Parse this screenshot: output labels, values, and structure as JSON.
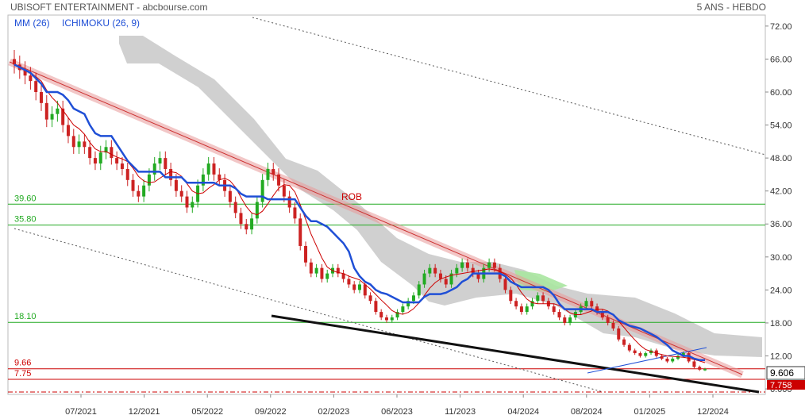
{
  "header": {
    "title": "UBISOFT ENTERTAINMENT - abcbourse.com",
    "period": "5 ANS - HEBDO"
  },
  "legend": {
    "ma_label": "MM (26)",
    "ichimoku_label": "ICHIMOKU (26, 9)"
  },
  "colors": {
    "ma": "#cc0000",
    "ichimoku": "#1f4fd6",
    "cloud": "#c8c8c8",
    "cloud_bull": "#a9e6a0",
    "candle_up": "#22aa22",
    "candle_down": "#cc2222",
    "support": "#22aa22",
    "resistance": "#cc0000",
    "channel": "#e89a9a"
  },
  "chart_data": {
    "type": "candlestick",
    "x_ticks": [
      "07/2021",
      "12/2021",
      "05/2022",
      "09/2022",
      "02/2023",
      "06/2023",
      "11/2023",
      "04/2024",
      "08/2024",
      "01/2025",
      "12/2024"
    ],
    "y_ticks": [
      "72.00",
      "66.00",
      "60.00",
      "54.00",
      "48.00",
      "42.00",
      "36.00",
      "30.00",
      "24.00",
      "18.00",
      "12.00",
      "6.000"
    ],
    "ylim": [
      5,
      74
    ],
    "levels": [
      {
        "label": "39.60",
        "value": 39.6,
        "color": "#22aa22"
      },
      {
        "label": "35.80",
        "value": 35.8,
        "color": "#22aa22"
      },
      {
        "label": "18.10",
        "value": 18.1,
        "color": "#22aa22"
      },
      {
        "label": "9.66",
        "value": 9.66,
        "color": "#cc0000"
      },
      {
        "label": "7.75",
        "value": 7.75,
        "color": "#cc0000"
      }
    ],
    "annotation": "ROB",
    "last_price": "9.606",
    "last_ma": "7.758",
    "close_series": [
      65,
      64,
      63,
      62,
      60,
      58,
      55,
      56,
      57,
      54,
      52,
      50,
      51,
      50,
      48,
      47,
      49,
      50,
      48,
      47,
      46,
      44,
      42,
      41,
      43,
      45,
      47,
      48,
      46,
      44,
      42,
      41,
      39,
      40,
      43,
      45,
      47,
      45,
      44,
      42,
      40,
      38,
      36,
      35,
      37,
      40,
      44,
      46,
      45,
      43,
      41,
      39,
      37,
      32,
      29,
      27,
      28,
      26,
      27,
      28,
      27,
      26,
      25,
      24,
      25,
      23,
      22,
      20,
      19,
      18.5,
      19,
      20,
      21,
      22,
      23,
      25,
      27,
      28,
      27,
      26,
      25,
      27,
      28,
      29,
      28,
      27,
      26,
      28,
      29,
      28,
      26,
      24,
      22,
      21,
      20,
      21,
      22,
      23,
      22,
      21,
      20,
      19,
      18,
      19,
      20,
      21,
      22,
      21,
      20,
      19,
      18,
      17,
      15,
      14,
      13,
      12.5,
      12,
      12.5,
      13,
      12,
      11.5,
      11,
      11.5,
      12,
      12.5,
      11,
      10,
      9.5,
      9.6
    ]
  }
}
